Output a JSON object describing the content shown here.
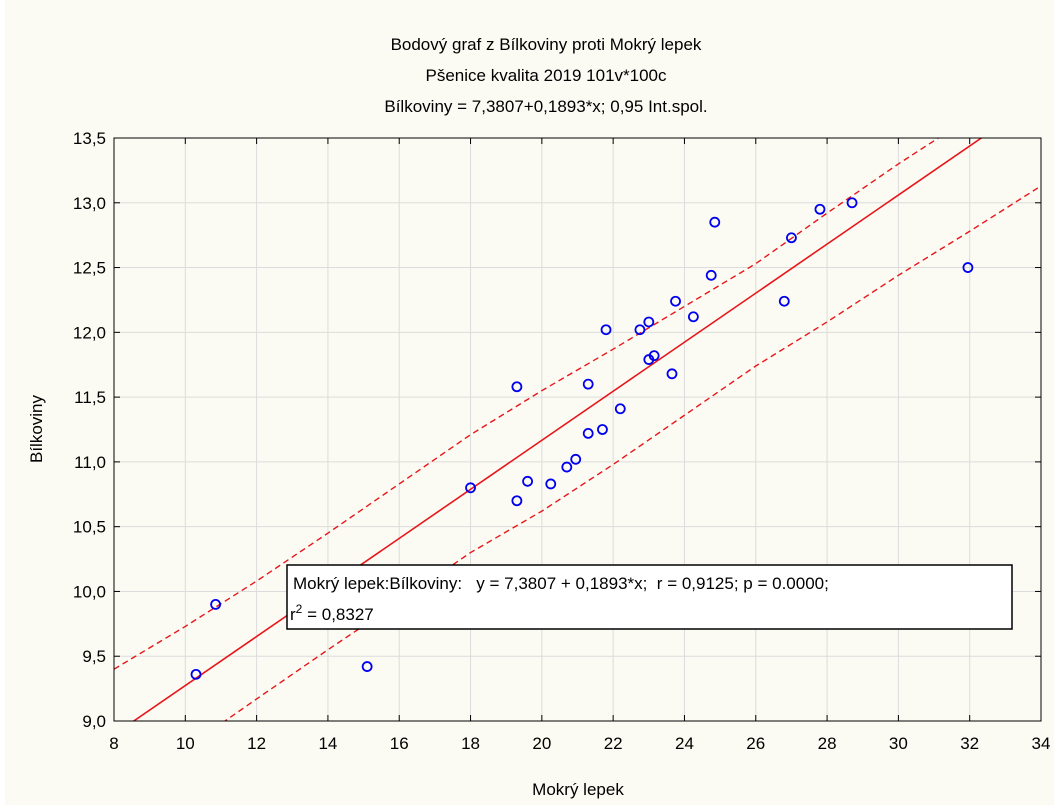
{
  "chart_data": {
    "type": "scatter",
    "title": "Bodový graf z Bílkoviny proti Mokrý lepek",
    "subtitle": "Pšenice kvalita 2019 101v*100c",
    "subtitle2": "Bílkoviny = 7,3807+0,1893*x; 0,95 Int.spol.",
    "xlabel": "Mokrý lepek",
    "ylabel": "Bílkoviny",
    "xlim": [
      8,
      34
    ],
    "ylim": [
      9.0,
      13.5
    ],
    "x_ticks": [
      8,
      10,
      12,
      14,
      16,
      18,
      20,
      22,
      24,
      26,
      28,
      30,
      32,
      34
    ],
    "x_tick_labels": [
      "8",
      "10",
      "12",
      "14",
      "16",
      "18",
      "20",
      "22",
      "24",
      "26",
      "28",
      "30",
      "32",
      "34"
    ],
    "y_ticks": [
      9.0,
      9.5,
      10.0,
      10.5,
      11.0,
      11.5,
      12.0,
      12.5,
      13.0,
      13.5
    ],
    "y_tick_labels": [
      "9,0",
      "9,5",
      "10,0",
      "10,5",
      "11,0",
      "11,5",
      "12,0",
      "12,5",
      "13,0",
      "13,5"
    ],
    "grid": true,
    "point_color": "#0000ee",
    "line_color": "#e8161b",
    "points": [
      {
        "x": 10.3,
        "y": 9.36
      },
      {
        "x": 10.85,
        "y": 9.9
      },
      {
        "x": 15.1,
        "y": 9.42
      },
      {
        "x": 18.0,
        "y": 10.8
      },
      {
        "x": 19.3,
        "y": 10.7
      },
      {
        "x": 19.3,
        "y": 11.58
      },
      {
        "x": 19.6,
        "y": 10.85
      },
      {
        "x": 20.25,
        "y": 10.83
      },
      {
        "x": 20.7,
        "y": 10.96
      },
      {
        "x": 20.95,
        "y": 11.02
      },
      {
        "x": 21.3,
        "y": 11.22
      },
      {
        "x": 21.3,
        "y": 11.6
      },
      {
        "x": 21.7,
        "y": 11.25
      },
      {
        "x": 21.8,
        "y": 12.02
      },
      {
        "x": 22.2,
        "y": 11.41
      },
      {
        "x": 22.75,
        "y": 12.02
      },
      {
        "x": 23.0,
        "y": 12.08
      },
      {
        "x": 23.0,
        "y": 11.79
      },
      {
        "x": 23.15,
        "y": 11.82
      },
      {
        "x": 23.65,
        "y": 11.68
      },
      {
        "x": 23.75,
        "y": 12.24
      },
      {
        "x": 24.25,
        "y": 12.12
      },
      {
        "x": 24.75,
        "y": 12.44
      },
      {
        "x": 24.85,
        "y": 12.85
      },
      {
        "x": 26.8,
        "y": 12.24
      },
      {
        "x": 27.0,
        "y": 12.73
      },
      {
        "x": 27.8,
        "y": 12.95
      },
      {
        "x": 28.7,
        "y": 13.0
      },
      {
        "x": 31.95,
        "y": 12.5
      }
    ],
    "regression": {
      "intercept": 7.3807,
      "slope": 0.1893
    },
    "confidence_band": {
      "upper": [
        [
          8,
          9.4
        ],
        [
          10,
          9.73
        ],
        [
          12,
          10.08
        ],
        [
          14,
          10.45
        ],
        [
          16,
          10.83
        ],
        [
          18,
          11.21
        ],
        [
          20,
          11.55
        ],
        [
          22,
          11.87
        ],
        [
          24,
          12.2
        ],
        [
          26,
          12.53
        ],
        [
          28,
          12.92
        ],
        [
          30,
          13.3
        ],
        [
          31.4,
          13.55
        ]
      ],
      "lower": [
        [
          10.8,
          8.94
        ],
        [
          12,
          9.17
        ],
        [
          14,
          9.55
        ],
        [
          16,
          9.92
        ],
        [
          18,
          10.3
        ],
        [
          20,
          10.62
        ],
        [
          22,
          10.98
        ],
        [
          24,
          11.36
        ],
        [
          26,
          11.74
        ],
        [
          28,
          12.08
        ],
        [
          30,
          12.44
        ],
        [
          32,
          12.78
        ],
        [
          34,
          13.13
        ]
      ]
    },
    "annotation": {
      "line1": "Mokrý lepek:Bílkoviny:   y = 7,3807 + 0,1893*x;  r = 0,9125; p = 0.0000;",
      "r_symbol": "r",
      "r_exponent": "2",
      "r_value": " = 0,8327"
    }
  }
}
